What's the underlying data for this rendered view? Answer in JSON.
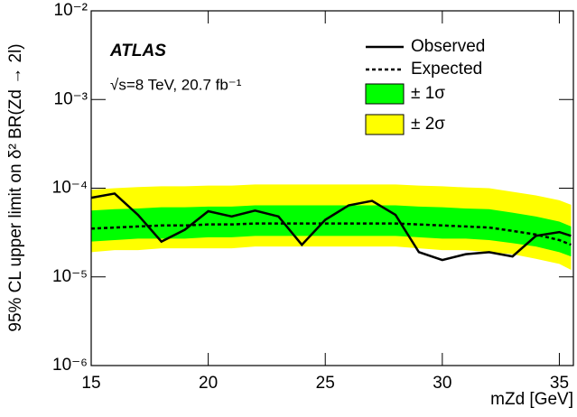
{
  "chart_data": {
    "type": "line",
    "ylog": true,
    "ylabel": "95% CL upper limit on δ² BR(Zd → 2l)",
    "xlabel": "mZd  [GeV]",
    "annotations": [
      "ATLAS",
      "√s=8 TeV, 20.7 fb⁻¹"
    ],
    "x": [
      15,
      16,
      17,
      18,
      19,
      20,
      21,
      22,
      23,
      24,
      25,
      26,
      27,
      28,
      29,
      30,
      31,
      32,
      33,
      34,
      35,
      35.5
    ],
    "series": [
      {
        "name": "Observed",
        "color": "#000000",
        "dash": false,
        "values": [
          7.8e-05,
          8.7e-05,
          5e-05,
          2.5e-05,
          3.4e-05,
          5.5e-05,
          4.8e-05,
          5.6e-05,
          4.8e-05,
          2.3e-05,
          4.4e-05,
          6.4e-05,
          7.2e-05,
          5e-05,
          1.9e-05,
          1.55e-05,
          1.8e-05,
          1.9e-05,
          1.7e-05,
          2.9e-05,
          3.2e-05,
          2.9e-05
        ]
      },
      {
        "name": "Expected",
        "color": "#000000",
        "dash": true,
        "values": [
          3.5e-05,
          3.6e-05,
          3.7e-05,
          3.8e-05,
          3.8e-05,
          3.9e-05,
          3.9e-05,
          4e-05,
          4e-05,
          4e-05,
          4e-05,
          4e-05,
          4e-05,
          4e-05,
          3.9e-05,
          3.8e-05,
          3.7e-05,
          3.6e-05,
          3.3e-05,
          3e-05,
          2.6e-05,
          2.3e-05
        ]
      }
    ],
    "bands": [
      {
        "name": "± 2σ",
        "color": "#ffff00",
        "lower": [
          1.9e-05,
          2e-05,
          2e-05,
          2.1e-05,
          2.1e-05,
          2.1e-05,
          2.1e-05,
          2.2e-05,
          2.2e-05,
          2.2e-05,
          2.2e-05,
          2.2e-05,
          2.2e-05,
          2.2e-05,
          2.1e-05,
          2e-05,
          2e-05,
          1.9e-05,
          1.8e-05,
          1.6e-05,
          1.4e-05,
          1.2e-05
        ],
        "upper": [
          9.6e-05,
          0.0001,
          0.000103,
          0.000105,
          0.000105,
          0.000107,
          0.000107,
          0.00011,
          0.00011,
          0.00011,
          0.00011,
          0.00011,
          0.00011,
          0.00011,
          0.000107,
          0.000105,
          0.000102,
          0.0001,
          9.1e-05,
          8.3e-05,
          7.3e-05,
          6.5e-05
        ]
      },
      {
        "name": "± 1σ",
        "color": "#00ff00",
        "lower": [
          2.5e-05,
          2.6e-05,
          2.7e-05,
          2.7e-05,
          2.7e-05,
          2.8e-05,
          2.8e-05,
          2.9e-05,
          2.9e-05,
          2.9e-05,
          2.9e-05,
          2.9e-05,
          2.9e-05,
          2.9e-05,
          2.8e-05,
          2.7e-05,
          2.7e-05,
          2.6e-05,
          2.4e-05,
          2.2e-05,
          1.9e-05,
          1.7e-05
        ],
        "upper": [
          5.6e-05,
          5.8e-05,
          5.9e-05,
          6.1e-05,
          6.1e-05,
          6.2e-05,
          6.2e-05,
          6.4e-05,
          6.4e-05,
          6.4e-05,
          6.4e-05,
          6.4e-05,
          6.4e-05,
          6.4e-05,
          6.2e-05,
          6.1e-05,
          5.9e-05,
          5.8e-05,
          5.3e-05,
          4.8e-05,
          4.2e-05,
          3.7e-05
        ]
      }
    ],
    "xlim": [
      15,
      35.6
    ],
    "ylim": [
      1e-06,
      0.01
    ],
    "xticks": [
      15,
      20,
      25,
      30,
      35
    ],
    "yticks": [
      {
        "value": 1e-06,
        "label": "10⁻⁶"
      },
      {
        "value": 1e-05,
        "label": "10⁻⁵"
      },
      {
        "value": 0.0001,
        "label": "10⁻⁴"
      },
      {
        "value": 0.001,
        "label": "10⁻³"
      },
      {
        "value": 0.01,
        "label": "10⁻²"
      }
    ]
  }
}
